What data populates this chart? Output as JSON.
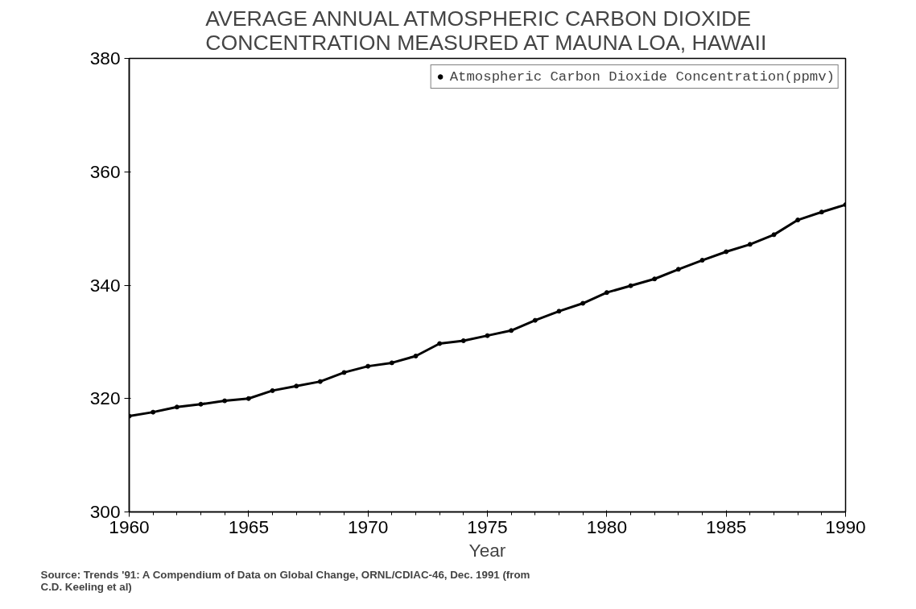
{
  "chart_data": {
    "type": "line",
    "title": "AVERAGE ANNUAL ATMOSPHERIC CARBON DIOXIDE\nCONCENTRATION MEASURED AT MAUNA LOA, HAWAII",
    "xlabel": "Year",
    "x": [
      1960,
      1961,
      1962,
      1963,
      1964,
      1965,
      1966,
      1967,
      1968,
      1969,
      1970,
      1971,
      1972,
      1973,
      1974,
      1975,
      1976,
      1977,
      1978,
      1979,
      1980,
      1981,
      1982,
      1983,
      1984,
      1985,
      1986,
      1987,
      1988,
      1989,
      1990
    ],
    "series": [
      {
        "name": "Atmospheric Carbon Dioxide Concentration(ppmv)",
        "color": "#000000",
        "values": [
          316.9,
          317.6,
          318.5,
          319.0,
          319.6,
          320.0,
          321.4,
          322.2,
          323.0,
          324.6,
          325.7,
          326.3,
          327.5,
          329.7,
          330.2,
          331.1,
          332.0,
          333.8,
          335.4,
          336.8,
          338.7,
          339.9,
          341.1,
          342.8,
          344.4,
          345.9,
          347.2,
          348.9,
          351.5,
          352.9,
          354.2
        ]
      }
    ],
    "xlim": [
      1960,
      1990
    ],
    "ylim": [
      300,
      380
    ],
    "xticks": [
      1960,
      1965,
      1970,
      1975,
      1980,
      1985,
      1990
    ],
    "yticks": [
      300,
      320,
      340,
      360,
      380
    ],
    "grid": false,
    "legend": "top right",
    "marker": "circle",
    "line_style": "solid",
    "annotations": [
      "Source:  Trends '91: A Compendium of Data on Global Change, ORNL/CDIAC-46, Dec. 1991 (from\nC.D. Keeling et al)"
    ]
  }
}
